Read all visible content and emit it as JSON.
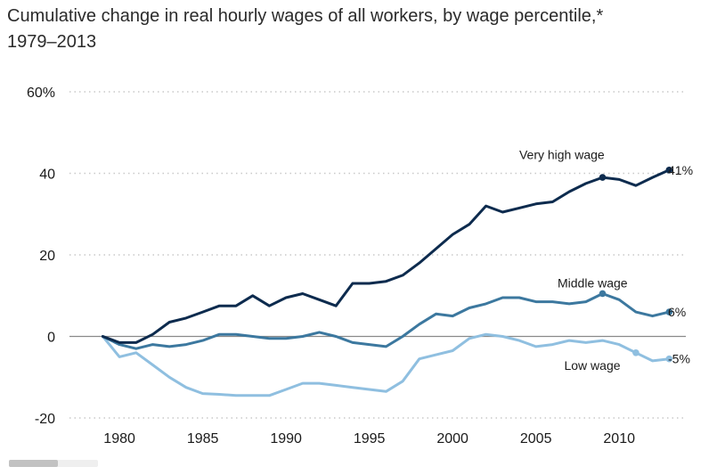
{
  "title": {
    "line1": "Cumulative change in real hourly wages of all workers, by wage percentile,*",
    "line2": "1979–2013"
  },
  "chart_data": {
    "type": "line",
    "title": "Cumulative change in real hourly wages of all workers, by wage percentile,* 1979–2013",
    "xlabel": "",
    "ylabel": "",
    "xlim": [
      1977,
      2014
    ],
    "ylim": [
      -20,
      60
    ],
    "x_ticks": [
      1980,
      1985,
      1990,
      1995,
      2000,
      2005,
      2010
    ],
    "y_ticks": [
      {
        "value": 60,
        "label": "60%"
      },
      {
        "value": 40,
        "label": "40"
      },
      {
        "value": 20,
        "label": "20"
      },
      {
        "value": 0,
        "label": "0"
      },
      {
        "value": -20,
        "label": "-20"
      }
    ],
    "grid": "horizontal-dotted",
    "x": [
      1979,
      1980,
      1981,
      1982,
      1983,
      1984,
      1985,
      1986,
      1987,
      1988,
      1989,
      1990,
      1991,
      1992,
      1993,
      1994,
      1995,
      1996,
      1997,
      1998,
      1999,
      2000,
      2001,
      2002,
      2003,
      2004,
      2005,
      2006,
      2007,
      2008,
      2009,
      2010,
      2011,
      2012,
      2013
    ],
    "series": [
      {
        "name": "Very high wage",
        "end_label": "41%",
        "color": "#0d2b4e",
        "marker_x": [
          2009,
          2013
        ],
        "values": [
          0,
          -1.5,
          -1.5,
          0.5,
          3.5,
          4.5,
          6,
          7.5,
          7.5,
          10,
          7.5,
          9.5,
          10.5,
          9,
          7.5,
          13,
          13,
          13.5,
          15,
          18,
          21.5,
          25,
          27.5,
          32,
          30.5,
          31.5,
          32.5,
          33,
          35.5,
          37.5,
          39,
          38.5,
          37,
          39,
          40.8
        ]
      },
      {
        "name": "Middle wage",
        "end_label": "6%",
        "color": "#3c789f",
        "marker_x": [
          2009,
          2013
        ],
        "values": [
          0,
          -2,
          -3,
          -2,
          -2.5,
          -2,
          -1,
          0.5,
          0.5,
          0,
          -0.5,
          -0.5,
          0,
          1,
          0,
          -1.5,
          -2,
          -2.5,
          0,
          3,
          5.5,
          5,
          7,
          8,
          9.5,
          9.5,
          8.5,
          8.5,
          8,
          8.5,
          10.5,
          9,
          6,
          5,
          6
        ]
      },
      {
        "name": "Low wage",
        "end_label": "-5%",
        "color": "#8fbfe0",
        "marker_x": [
          2011,
          2013
        ],
        "values": [
          0,
          -5,
          -4,
          -7,
          -10,
          -12.5,
          -14,
          -14.2,
          -14.5,
          -14.5,
          -14.5,
          -13,
          -11.5,
          -11.5,
          -12,
          -12.5,
          -13,
          -13.5,
          -11,
          -5.5,
          -4.5,
          -3.5,
          -0.5,
          0.5,
          0,
          -1,
          -2.5,
          -2,
          -1,
          -1.5,
          -1,
          -2,
          -4,
          -6,
          -5.5
        ]
      }
    ]
  }
}
